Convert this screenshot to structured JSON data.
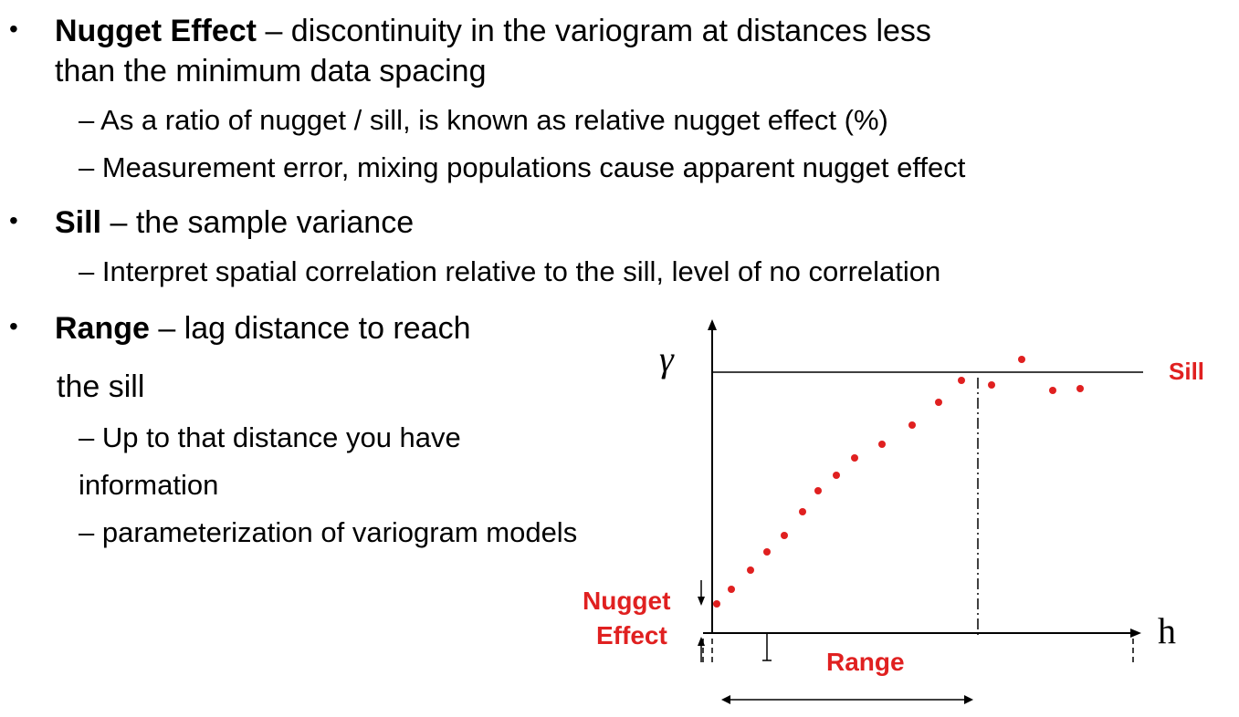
{
  "bullets": {
    "nugget": {
      "term": "Nugget Effect",
      "text": " – discontinuity in the variogram at distances less",
      "text_line2": "than the minimum data spacing",
      "sub": [
        "– As a ratio of nugget / sill, is known as relative nugget effect (%)",
        "– Measurement error, mixing populations cause apparent nugget effect"
      ]
    },
    "sill": {
      "term": "Sill",
      "text": " – the sample variance",
      "sub": [
        "– Interpret spatial correlation relative to the sill, level of no correlation"
      ]
    },
    "range": {
      "term": "Range",
      "text": " – lag distance to reach",
      "text_line2": "the sill",
      "sub": [
        "– Up to that distance you have",
        "information",
        "– parameterization of variogram models"
      ]
    }
  },
  "diagram": {
    "y_axis_label": "γ",
    "x_axis_label": "h",
    "sill_label": "Sill",
    "nugget_label_line1": "Nugget",
    "nugget_label_line2": "Effect",
    "range_label": "Range",
    "colors": {
      "points": "#e02020",
      "labels": "#e02020",
      "lines": "#000000"
    }
  }
}
